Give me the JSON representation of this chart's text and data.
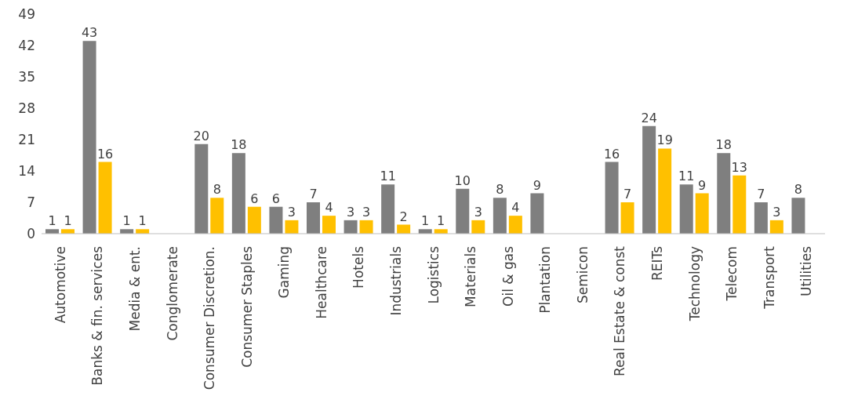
{
  "chart_data": {
    "type": "bar",
    "categories": [
      "Automotive",
      "Banks & fin. services",
      "Media & ent.",
      "Conglomerate",
      "Consumer Discretion.",
      "Consumer Staples",
      "Gaming",
      "Healthcare",
      "Hotels",
      "Industrials",
      "Logistics",
      "Materials",
      "Oil & gas",
      "Plantation",
      "Semicon",
      "Real Estate & const",
      "REITs",
      "Technology",
      "Telecom",
      "Transport",
      "Utilities"
    ],
    "series": [
      {
        "color": "#7f7f7f",
        "values": [
          1,
          43,
          1,
          null,
          20,
          18,
          6,
          7,
          3,
          11,
          1,
          10,
          8,
          9,
          null,
          16,
          24,
          11,
          18,
          7,
          8
        ]
      },
      {
        "color": "#ffc000",
        "values": [
          1,
          16,
          1,
          null,
          8,
          6,
          3,
          4,
          3,
          2,
          1,
          3,
          4,
          null,
          null,
          7,
          19,
          9,
          13,
          3,
          null
        ]
      }
    ],
    "ylim": [
      0,
      49
    ],
    "yticks": [
      0,
      7,
      14,
      21,
      28,
      35,
      42,
      49
    ],
    "grid": false,
    "legend": false,
    "data_labels": true
  }
}
